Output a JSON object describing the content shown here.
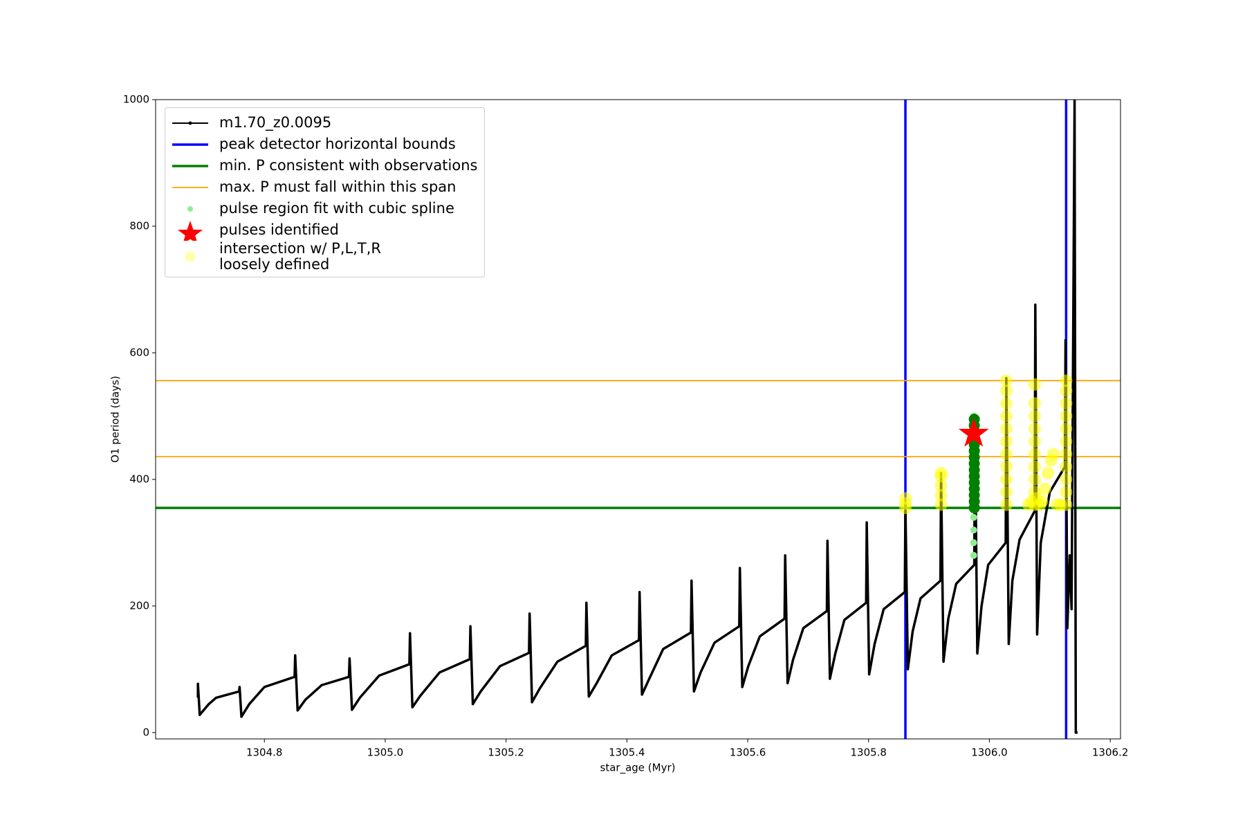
{
  "chart_data": {
    "type": "line",
    "xlabel": "star_age (Myr)",
    "ylabel": "O1 period (days)",
    "xlim": [
      1304.62,
      1306.217
    ],
    "ylim": [
      -10,
      1000
    ],
    "xticks": [
      1304.8,
      {
        "value": 1305.0,
        "label": "1305.0"
      },
      1305.2,
      1305.4,
      1305.6,
      1305.8,
      {
        "value": 1306.0,
        "label": "1306.0"
      },
      1306.2
    ],
    "yticks": [
      0,
      200,
      400,
      600,
      800,
      1000
    ],
    "series": [
      {
        "name": "m1.70_z0.0095",
        "color": "#000000",
        "x": [
          1304.69,
          1304.69,
          1304.693,
          1304.708,
          1304.72,
          1304.758,
          1304.759,
          1304.762,
          1304.775,
          1304.8,
          1304.85,
          1304.851,
          1304.855,
          1304.868,
          1304.895,
          1304.94,
          1304.941,
          1304.945,
          1304.958,
          1304.99,
          1305.04,
          1305.041,
          1305.045,
          1305.058,
          1305.09,
          1305.14,
          1305.141,
          1305.145,
          1305.158,
          1305.19,
          1305.238,
          1305.239,
          1305.243,
          1305.256,
          1305.285,
          1305.332,
          1305.333,
          1305.337,
          1305.35,
          1305.375,
          1305.42,
          1305.421,
          1305.425,
          1305.437,
          1305.46,
          1305.506,
          1305.507,
          1305.511,
          1305.522,
          1305.545,
          1305.586,
          1305.587,
          1305.591,
          1305.601,
          1305.62,
          1305.661,
          1305.662,
          1305.666,
          1305.675,
          1305.692,
          1305.731,
          1305.732,
          1305.736,
          1305.745,
          1305.76,
          1305.796,
          1305.797,
          1305.801,
          1305.81,
          1305.825,
          1305.86,
          1305.861,
          1305.865,
          1305.873,
          1305.886,
          1305.919,
          1305.92,
          1305.924,
          1305.932,
          1305.945,
          1305.975,
          1305.976,
          1305.98,
          1305.987,
          1305.998,
          1306.027,
          1306.028,
          1306.032,
          1306.038,
          1306.05,
          1306.075,
          1306.076,
          1306.079,
          1306.085,
          1306.1,
          1306.125,
          1306.126,
          1306.129,
          1306.133,
          1306.136,
          1306.141,
          1306.143,
          1306.146
        ],
        "y": [
          55,
          77,
          28,
          45,
          55,
          65,
          72,
          25,
          45,
          72,
          88,
          122,
          35,
          52,
          75,
          88,
          117,
          36,
          55,
          90,
          108,
          157,
          40,
          58,
          95,
          116,
          168,
          45,
          65,
          105,
          126,
          188,
          48,
          70,
          112,
          137,
          205,
          57,
          78,
          122,
          146,
          222,
          60,
          85,
          132,
          158,
          240,
          65,
          95,
          142,
          168,
          260,
          72,
          105,
          152,
          180,
          280,
          78,
          115,
          165,
          192,
          303,
          85,
          125,
          178,
          205,
          332,
          92,
          140,
          195,
          222,
          360,
          100,
          160,
          212,
          240,
          410,
          112,
          180,
          235,
          265,
          495,
          125,
          200,
          265,
          300,
          560,
          140,
          240,
          305,
          350,
          676,
          155,
          300,
          380,
          420,
          620,
          165,
          280,
          195,
          1000,
          0,
          0
        ]
      }
    ],
    "reference_lines": [
      {
        "name": "peak detector horizontal bounds",
        "color": "#0000ff",
        "orientation": "vertical",
        "values": [
          1305.861,
          1306.127
        ]
      },
      {
        "name": "min. P consistent with observations",
        "color": "#008000",
        "orientation": "horizontal",
        "values": [
          355
        ]
      },
      {
        "name": "max. P must fall within this span",
        "color": "#ffa500",
        "orientation": "horizontal",
        "values": [
          436,
          556
        ]
      }
    ],
    "point_sets": [
      {
        "name": "pulse region fit with cubic spline",
        "color": "#90ee90",
        "marker": "circle",
        "x": [
          1305.974,
          1305.974,
          1305.974,
          1305.974,
          1305.974,
          1305.974,
          1305.974,
          1305.974,
          1305.974,
          1305.974,
          1305.974,
          1305.974
        ],
        "y": [
          280,
          300,
          320,
          340,
          360,
          380,
          400,
          420,
          440,
          460,
          480,
          500
        ]
      },
      {
        "color": "#008000",
        "marker": "circle",
        "x": [
          1305.975,
          1305.975,
          1305.975,
          1305.975,
          1305.975,
          1305.975,
          1305.975,
          1305.975,
          1305.975,
          1305.975,
          1305.975,
          1305.975,
          1305.975,
          1305.975,
          1305.975
        ],
        "y": [
          355,
          365,
          375,
          385,
          395,
          405,
          415,
          425,
          435,
          445,
          455,
          465,
          475,
          485,
          495
        ]
      },
      {
        "name": "pulses identified",
        "color": "#ff0000",
        "marker": "star",
        "x": [
          1305.974
        ],
        "y": [
          472
        ]
      },
      {
        "name": "intersection w/ P,L,T,R\nloosely defined",
        "color": "#ffff00",
        "marker": "circle",
        "x": [
          1305.861,
          1305.861,
          1305.861,
          1305.92,
          1305.92,
          1305.92,
          1305.92,
          1305.92,
          1306.028,
          1306.028,
          1306.028,
          1306.028,
          1306.028,
          1306.028,
          1306.028,
          1306.028,
          1306.028,
          1306.028,
          1306.028,
          1306.075,
          1306.075,
          1306.075,
          1306.075,
          1306.075,
          1306.075,
          1306.075,
          1306.075,
          1306.075,
          1306.075,
          1306.065,
          1306.07,
          1306.078,
          1306.083,
          1306.087,
          1306.092,
          1306.097,
          1306.102,
          1306.106,
          1306.112,
          1306.118,
          1306.127,
          1306.127,
          1306.127,
          1306.127,
          1306.127,
          1306.127,
          1306.127,
          1306.127,
          1306.127,
          1306.127,
          1306.127
        ],
        "y": [
          355,
          362,
          370,
          360,
          375,
          390,
          405,
          410,
          360,
          380,
          400,
          420,
          440,
          460,
          480,
          500,
          520,
          540,
          556,
          360,
          380,
          400,
          420,
          440,
          460,
          480,
          500,
          520,
          550,
          360,
          365,
          370,
          360,
          365,
          385,
          410,
          430,
          440,
          360,
          360,
          360,
          380,
          400,
          420,
          440,
          460,
          480,
          500,
          520,
          540,
          556
        ]
      }
    ]
  }
}
